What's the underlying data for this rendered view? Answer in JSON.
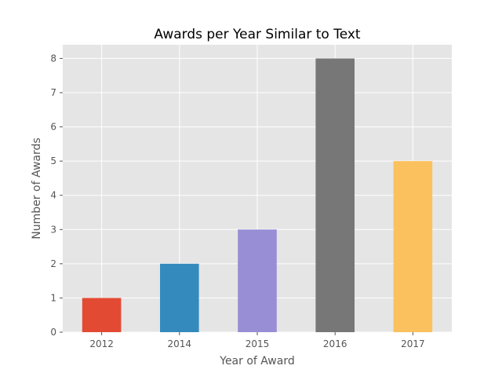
{
  "chart_data": {
    "type": "bar",
    "title": "Awards per Year Similar to Text",
    "xlabel": "Year of Award",
    "ylabel": "Number of Awards",
    "categories": [
      "2012",
      "2014",
      "2015",
      "2016",
      "2017"
    ],
    "values": [
      1,
      2,
      3,
      8,
      5
    ],
    "colors": [
      "#e24a33",
      "#348abd",
      "#988ed5",
      "#777777",
      "#fbc15e"
    ],
    "ylim": [
      0,
      8.4
    ],
    "yticks": [
      0,
      1,
      2,
      3,
      4,
      5,
      6,
      7,
      8
    ],
    "grid": true,
    "background": "#e5e5e5"
  }
}
